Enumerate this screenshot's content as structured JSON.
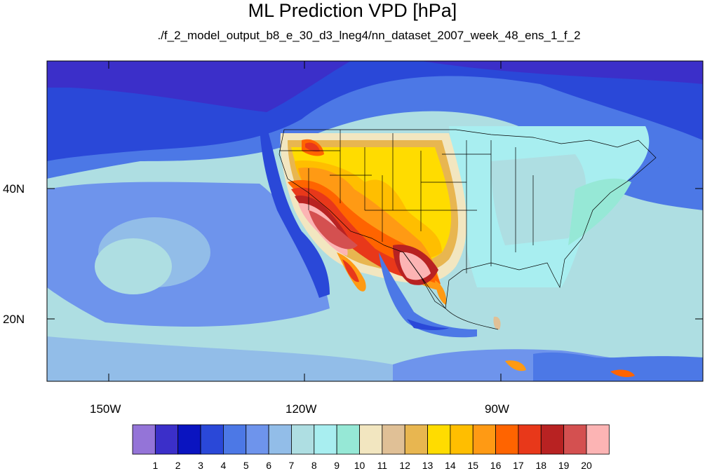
{
  "title": "ML Prediction VPD [hPa]",
  "subtitle": "./f_2_model_output_b8_e_30_d3_lneg4/nn_dataset_2007_week_48_ens_1_f_2",
  "axes": {
    "lat_labels": [
      "40N",
      "20N"
    ],
    "lon_labels": [
      "150W",
      "120W",
      "90W"
    ]
  },
  "colorbar": {
    "labels": [
      "1",
      "2",
      "3",
      "4",
      "5",
      "6",
      "7",
      "8",
      "9",
      "10",
      "11",
      "12",
      "13",
      "14",
      "15",
      "16",
      "17",
      "18",
      "19",
      "20"
    ],
    "colors": [
      "#9474d8",
      "#3b2fc9",
      "#0a14c0",
      "#2a48d8",
      "#4c78e6",
      "#6e94ec",
      "#92bde8",
      "#aedee2",
      "#a8eef0",
      "#96e8d6",
      "#f2e6c0",
      "#e0c096",
      "#e8b650",
      "#ffdc00",
      "#ffbe00",
      "#ff9a14",
      "#ff6400",
      "#e8381a",
      "#b82222",
      "#d45050",
      "#fcb4b4"
    ]
  },
  "chart_data": {
    "type": "heatmap",
    "title": "ML Prediction VPD [hPa]",
    "subtitle": "./f_2_model_output_b8_e_30_d3_lneg4/nn_dataset_2007_week_48_ens_1_f_2",
    "x_ticks": [
      "150W",
      "120W",
      "90W"
    ],
    "y_ticks": [
      "40N",
      "20N"
    ],
    "colorbar_levels": [
      1,
      2,
      3,
      4,
      5,
      6,
      7,
      8,
      9,
      10,
      11,
      12,
      13,
      14,
      15,
      16,
      17,
      18,
      19,
      20
    ]
  }
}
